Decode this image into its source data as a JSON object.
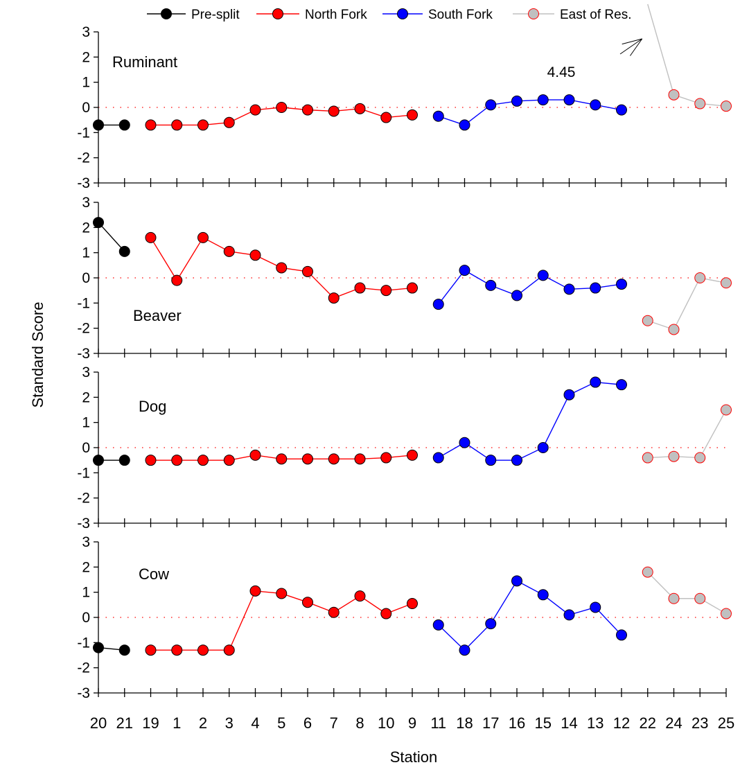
{
  "chart_data": {
    "type": "line",
    "xlabel": "Station",
    "ylabel": "Standard Score",
    "ylim": [
      -3,
      3
    ],
    "yticks": [
      "3",
      "2",
      "1",
      "0",
      "-1",
      "-2",
      "-3"
    ],
    "categories": [
      "20",
      "21",
      "19",
      "1",
      "2",
      "3",
      "4",
      "5",
      "6",
      "7",
      "8",
      "10",
      "9",
      "11",
      "18",
      "17",
      "16",
      "15",
      "14",
      "13",
      "12",
      "22",
      "24",
      "23",
      "25"
    ],
    "legend": {
      "placement": "top",
      "entries": [
        {
          "name": "Pre-split",
          "color": "#000000",
          "fill": "#000000"
        },
        {
          "name": "North Fork",
          "color": "#ff0000",
          "fill": "#ff0000"
        },
        {
          "name": "South Fork",
          "color": "#0000ff",
          "fill": "#0000ff"
        },
        {
          "name": "East of Res.",
          "color": "#c0c0c0",
          "fill": "#c0c0c0",
          "edge": "#ff0000"
        }
      ]
    },
    "groups": [
      {
        "name": "Pre-split",
        "categories": [
          "20",
          "21"
        ]
      },
      {
        "name": "North Fork",
        "categories": [
          "19",
          "1",
          "2",
          "3",
          "4",
          "5",
          "6",
          "7",
          "8",
          "10",
          "9"
        ]
      },
      {
        "name": "South Fork",
        "categories": [
          "11",
          "18",
          "17",
          "16",
          "15",
          "14",
          "13",
          "12"
        ]
      },
      {
        "name": "East of Res.",
        "categories": [
          "22",
          "24",
          "23",
          "25"
        ]
      }
    ],
    "panels": [
      {
        "title": "Ruminant",
        "annotation": {
          "text": "4.45",
          "category": "22",
          "value": 4.45
        },
        "values": {
          "Pre-split": [
            -0.7,
            -0.7
          ],
          "North Fork": [
            -0.7,
            -0.7,
            -0.7,
            -0.6,
            -0.1,
            0.0,
            -0.1,
            -0.15,
            -0.05,
            -0.4,
            -0.3
          ],
          "South Fork": [
            -0.35,
            -0.7,
            0.1,
            0.25,
            0.3,
            0.3,
            0.1,
            -0.1
          ],
          "East of Res.": [
            4.45,
            0.5,
            0.15,
            0.05
          ]
        }
      },
      {
        "title": "Beaver",
        "values": {
          "Pre-split": [
            2.2,
            1.05
          ],
          "North Fork": [
            1.6,
            -0.1,
            1.6,
            1.05,
            0.9,
            0.4,
            0.25,
            -0.8,
            -0.4,
            -0.5,
            -0.4
          ],
          "South Fork": [
            -1.05,
            0.3,
            -0.3,
            -0.7,
            0.1,
            -0.45,
            -0.4,
            -0.25
          ],
          "East of Res.": [
            -1.7,
            -2.05,
            0.0,
            -0.2
          ]
        }
      },
      {
        "title": "Dog",
        "values": {
          "Pre-split": [
            -0.5,
            -0.5
          ],
          "North Fork": [
            -0.5,
            -0.5,
            -0.5,
            -0.5,
            -0.3,
            -0.45,
            -0.45,
            -0.45,
            -0.45,
            -0.4,
            -0.3
          ],
          "South Fork": [
            -0.4,
            0.2,
            -0.5,
            -0.5,
            0.0,
            2.1,
            2.6,
            2.5
          ],
          "East of Res.": [
            -0.4,
            -0.35,
            -0.4,
            1.5
          ]
        }
      },
      {
        "title": "Cow",
        "values": {
          "Pre-split": [
            -1.2,
            -1.3
          ],
          "North Fork": [
            -1.3,
            -1.3,
            -1.3,
            -1.3,
            1.05,
            0.95,
            0.6,
            0.2,
            0.85,
            0.15,
            0.55
          ],
          "South Fork": [
            -0.3,
            -1.3,
            -0.25,
            1.45,
            0.9,
            0.1,
            0.4,
            -0.7
          ],
          "East of Res.": [
            1.8,
            0.75,
            0.75,
            0.15
          ]
        }
      }
    ]
  }
}
